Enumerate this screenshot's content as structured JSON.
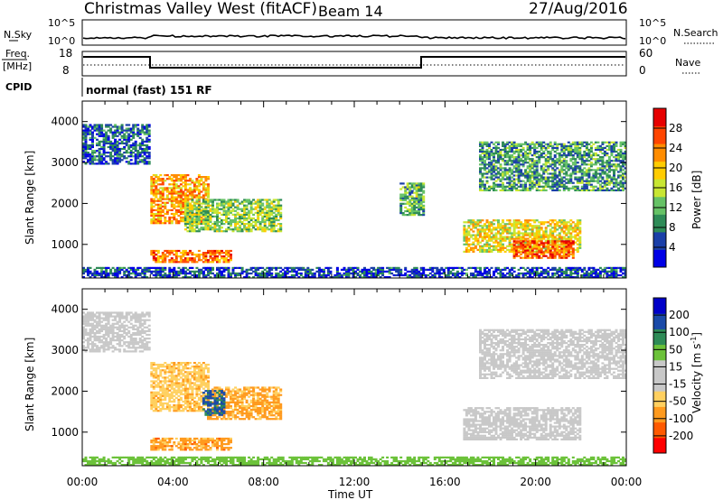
{
  "header": {
    "station": "Christmas Valley West (fitACF)",
    "beam": "Beam 14",
    "date": "27/Aug/2016"
  },
  "panels": {
    "nsky": {
      "label": "N.Sky",
      "tick_top": "10^5",
      "tick_bottom": "10^0",
      "right_label": "N.Search",
      "right_tick_top": "10^5",
      "right_tick_bottom": "10^0"
    },
    "freq": {
      "label_line1": "Freq.",
      "label_line2": "[MHz]",
      "tick_top": "18",
      "tick_bottom": "8",
      "right_label": "Nave",
      "right_tick_top": "60",
      "right_tick_bottom": "0"
    },
    "cpid": {
      "label": "CPID",
      "text": "normal (fast) 151 RF"
    }
  },
  "colors": {
    "power_scale": [
      "#0000e6",
      "#1a3fa8",
      "#2e8b57",
      "#66c266",
      "#c8e632",
      "#ffcc00",
      "#ff8c00",
      "#ff4500",
      "#e60000"
    ],
    "velocity_scale": [
      "#ff0000",
      "#ff5a00",
      "#ff9a1e",
      "#ffd060",
      "#c8c8c8",
      "#c8c8c8",
      "#6cc23a",
      "#2e8b57",
      "#1a4aa8",
      "#0000c8"
    ],
    "ground_scatter": "#c8c8c8"
  },
  "chart_data": [
    {
      "type": "heatmap",
      "title": "Power",
      "xlabel": "Time UT",
      "ylabel": "Slant Range [km]",
      "x_ticks": [
        "00:00",
        "04:00",
        "08:00",
        "12:00",
        "16:00",
        "20:00",
        "00:00"
      ],
      "y_ticks": [
        "1000",
        "2000",
        "3000",
        "4000"
      ],
      "ylim": [
        180,
        4500
      ],
      "colorbar_label": "Power [dB]",
      "colorbar_ticks": [
        "4",
        "8",
        "12",
        "16",
        "20",
        "24",
        "28"
      ],
      "colorbar_range": [
        0,
        32
      ],
      "regions": [
        {
          "t0": 0.0,
          "t1": 3.0,
          "r0": 2950,
          "r1": 3900,
          "level": 6
        },
        {
          "t0": 3.0,
          "t1": 5.5,
          "r0": 1500,
          "r1": 2700,
          "level": 22
        },
        {
          "t0": 4.5,
          "t1": 8.7,
          "r0": 1300,
          "r1": 2100,
          "level": 14
        },
        {
          "t0": 3.0,
          "t1": 6.5,
          "r0": 550,
          "r1": 850,
          "level": 24
        },
        {
          "t0": 14.0,
          "t1": 15.0,
          "r0": 1700,
          "r1": 2500,
          "level": 12
        },
        {
          "t0": 16.8,
          "t1": 22.0,
          "r0": 800,
          "r1": 1600,
          "level": 18
        },
        {
          "t0": 19.0,
          "t1": 21.7,
          "r0": 650,
          "r1": 1100,
          "level": 26
        },
        {
          "t0": 17.5,
          "t1": 24.0,
          "r0": 2300,
          "r1": 3500,
          "level": 10
        },
        {
          "t0": 0.0,
          "t1": 24.0,
          "r0": 180,
          "r1": 450,
          "level": 5
        }
      ]
    },
    {
      "type": "heatmap",
      "title": "Velocity",
      "xlabel": "Time UT",
      "ylabel": "Slant Range [km]",
      "x_ticks": [
        "00:00",
        "04:00",
        "08:00",
        "12:00",
        "16:00",
        "20:00",
        "00:00"
      ],
      "y_ticks": [
        "1000",
        "2000",
        "3000",
        "4000"
      ],
      "ylim": [
        180,
        4500
      ],
      "colorbar_label": "Velocity [m s",
      "colorbar_label_sup": "-1",
      "colorbar_label_end": "]",
      "colorbar_ticks": [
        "200",
        "100",
        "50",
        "15",
        "-15",
        "-50",
        "-100",
        "-200"
      ],
      "regions": [
        {
          "t0": 0.0,
          "t1": 3.0,
          "r0": 2950,
          "r1": 3900,
          "value": 0
        },
        {
          "t0": 3.0,
          "t1": 5.5,
          "r0": 1500,
          "r1": 2700,
          "value": -40
        },
        {
          "t0": 5.5,
          "t1": 8.7,
          "r0": 1300,
          "r1": 2100,
          "value": -60
        },
        {
          "t0": 5.3,
          "t1": 6.2,
          "r0": 1400,
          "r1": 2000,
          "value": 120
        },
        {
          "t0": 3.0,
          "t1": 6.5,
          "r0": 550,
          "r1": 850,
          "value": -70
        },
        {
          "t0": 16.8,
          "t1": 22.0,
          "r0": 800,
          "r1": 1600,
          "value": 0
        },
        {
          "t0": 17.5,
          "t1": 24.0,
          "r0": 2300,
          "r1": 3500,
          "value": 0
        },
        {
          "t0": 0.0,
          "t1": 24.0,
          "r0": 180,
          "r1": 400,
          "value": 30
        }
      ]
    }
  ]
}
